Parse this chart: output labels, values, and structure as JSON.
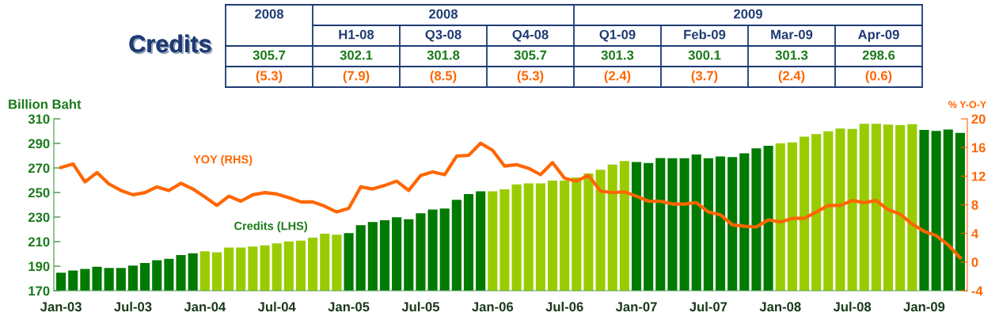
{
  "chart_data": {
    "type": "bar",
    "title": "Credits",
    "ylabel": "Billion Baht",
    "y2label": "% Y-O-Y",
    "categories": [
      "Jan-03",
      null,
      null,
      null,
      null,
      null,
      "Jul-03",
      null,
      null,
      null,
      null,
      null,
      "Jan-04",
      null,
      null,
      null,
      null,
      null,
      "Jul-04",
      null,
      null,
      null,
      null,
      null,
      "Jan-05",
      null,
      null,
      null,
      null,
      null,
      "Jul-05",
      null,
      null,
      null,
      null,
      null,
      "Jan-06",
      null,
      null,
      null,
      null,
      null,
      "Jul-06",
      null,
      null,
      null,
      null,
      null,
      "Jan-07",
      null,
      null,
      null,
      null,
      null,
      "Jul-07",
      null,
      null,
      null,
      null,
      null,
      "Jan-08",
      null,
      null,
      null,
      null,
      null,
      "Jul-08",
      null,
      null,
      null,
      null,
      null,
      "Jan-09",
      null,
      null,
      null
    ],
    "series": [
      {
        "name": "Credits (LHS)",
        "axis": "y",
        "colors": [
          "#007a00",
          "#007a00",
          "#007a00",
          "#007a00",
          "#007a00",
          "#007a00",
          "#007a00",
          "#007a00",
          "#007a00",
          "#007a00",
          "#007a00",
          "#007a00",
          "#99cc00",
          "#99cc00",
          "#99cc00",
          "#99cc00",
          "#99cc00",
          "#99cc00",
          "#99cc00",
          "#99cc00",
          "#99cc00",
          "#99cc00",
          "#99cc00",
          "#99cc00",
          "#007a00",
          "#007a00",
          "#007a00",
          "#007a00",
          "#007a00",
          "#007a00",
          "#007a00",
          "#007a00",
          "#007a00",
          "#007a00",
          "#007a00",
          "#007a00",
          "#99cc00",
          "#99cc00",
          "#99cc00",
          "#99cc00",
          "#99cc00",
          "#99cc00",
          "#99cc00",
          "#99cc00",
          "#99cc00",
          "#99cc00",
          "#99cc00",
          "#99cc00",
          "#007a00",
          "#007a00",
          "#007a00",
          "#007a00",
          "#007a00",
          "#007a00",
          "#007a00",
          "#007a00",
          "#007a00",
          "#007a00",
          "#007a00",
          "#007a00",
          "#99cc00",
          "#99cc00",
          "#99cc00",
          "#99cc00",
          "#99cc00",
          "#99cc00",
          "#99cc00",
          "#99cc00",
          "#99cc00",
          "#99cc00",
          "#99cc00",
          "#99cc00",
          "#007a00",
          "#007a00",
          "#007a00",
          "#007a00"
        ],
        "values": [
          184.7,
          186.4,
          187.8,
          189.5,
          188.6,
          188.6,
          190.5,
          192.6,
          194.9,
          195.9,
          199.0,
          200.5,
          202.1,
          201.3,
          205.2,
          205.2,
          206.0,
          206.9,
          208.5,
          210.2,
          210.8,
          213.3,
          216.4,
          215.6,
          217.0,
          223.4,
          225.9,
          227.4,
          229.9,
          228.2,
          233.0,
          236.1,
          236.9,
          244.0,
          248.7,
          251.0,
          251.0,
          252.5,
          256.6,
          257.4,
          257.4,
          259.7,
          259.7,
          262.2,
          265.5,
          268.6,
          272.8,
          275.7,
          274.8,
          274.0,
          278.1,
          277.9,
          277.9,
          281.0,
          277.9,
          279.4,
          278.8,
          281.9,
          286.0,
          288.0,
          290.0,
          290.8,
          295.5,
          297.6,
          299.9,
          302.1,
          301.8,
          305.9,
          305.9,
          305.3,
          304.9,
          305.7,
          301.0,
          300.1,
          301.3,
          298.6
        ]
      },
      {
        "name": "YOY (RHS)",
        "type": "line",
        "axis": "y2",
        "color": "#ff6600",
        "values": [
          13.2,
          13.7,
          11.2,
          12.5,
          10.9,
          10.0,
          9.4,
          9.7,
          10.5,
          10.0,
          11.0,
          10.2,
          9.1,
          7.9,
          9.2,
          8.5,
          9.4,
          9.7,
          9.5,
          9.0,
          8.4,
          8.4,
          7.8,
          7.0,
          7.5,
          10.5,
          10.2,
          10.7,
          11.3,
          10.0,
          12.1,
          12.6,
          12.2,
          14.8,
          14.9,
          16.6,
          15.6,
          13.4,
          13.6,
          13.1,
          12.2,
          13.9,
          11.7,
          11.3,
          12.1,
          9.9,
          9.7,
          9.8,
          9.2,
          8.5,
          8.5,
          8.1,
          8.1,
          8.3,
          7.0,
          6.6,
          5.2,
          5.0,
          4.9,
          5.9,
          5.6,
          6.1,
          6.1,
          7.0,
          7.9,
          7.9,
          8.6,
          8.3,
          8.6,
          7.3,
          6.7,
          5.3,
          4.3,
          3.7,
          2.4,
          0.6
        ]
      }
    ],
    "ylim": [
      170,
      310
    ],
    "yticks": [
      170,
      190,
      210,
      230,
      250,
      270,
      290,
      310
    ],
    "y2lim": [
      -4,
      20
    ],
    "y2ticks": [
      -4,
      0,
      4,
      8,
      12,
      16,
      20
    ],
    "grid": false,
    "legend": false,
    "annotations": [
      "2008",
      "2008",
      "2009",
      "H1-08",
      "Q3-08",
      "Q4-08",
      "Q1-09",
      "Feb-09",
      "Mar-09",
      "Apr-09",
      "305.7",
      "302.1",
      "301.8",
      "305.7",
      "301.3",
      "300.1",
      "301.3",
      "298.6",
      "(5.3)",
      "(7.9)",
      "(8.5)",
      "(5.3)",
      "(2.4)",
      "(3.7)",
      "(2.4)",
      "(0.6)"
    ]
  }
}
